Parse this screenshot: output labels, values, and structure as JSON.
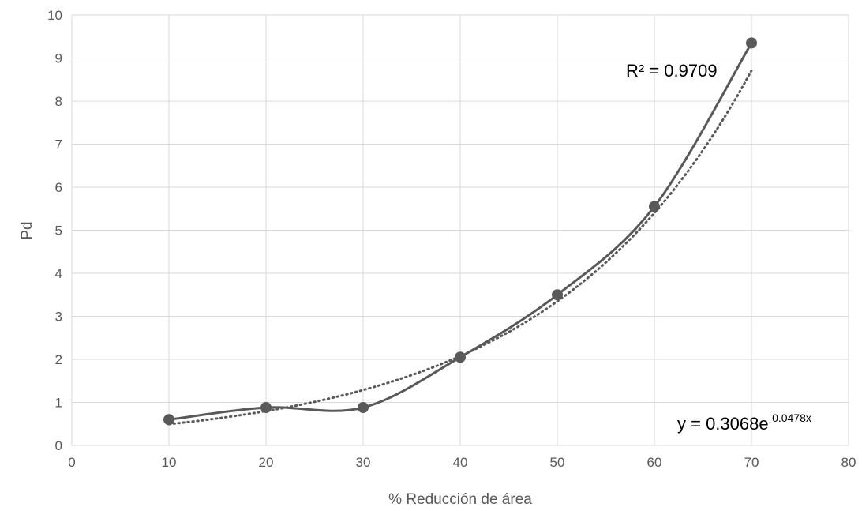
{
  "chart_data": {
    "type": "scatter",
    "xlabel": "% Reducción de área",
    "ylabel": "Pd",
    "xlim": [
      0,
      80
    ],
    "ylim": [
      0,
      10
    ],
    "x_ticks": [
      "0",
      "10",
      "20",
      "30",
      "40",
      "50",
      "60",
      "70",
      "80"
    ],
    "y_ticks": [
      "0",
      "1",
      "2",
      "3",
      "4",
      "5",
      "6",
      "7",
      "8",
      "9",
      "10"
    ],
    "grid": true,
    "series": [
      {
        "x": [
          10,
          20,
          30,
          40,
          50,
          60,
          70
        ],
        "y": [
          0.6,
          0.88,
          0.88,
          2.05,
          3.5,
          5.55,
          9.35
        ],
        "line": "smooth",
        "marker": "circle",
        "color": "#595959"
      }
    ],
    "trendline": {
      "type": "exponential",
      "a": 0.3068,
      "b": 0.0478,
      "x_range": [
        10,
        70
      ],
      "style": "dotted",
      "color": "#595959"
    },
    "annotations": {
      "r_squared": "R² = 0.9709",
      "equation_base": "y = 0.3068e",
      "equation_exp": "0.0478x"
    }
  }
}
